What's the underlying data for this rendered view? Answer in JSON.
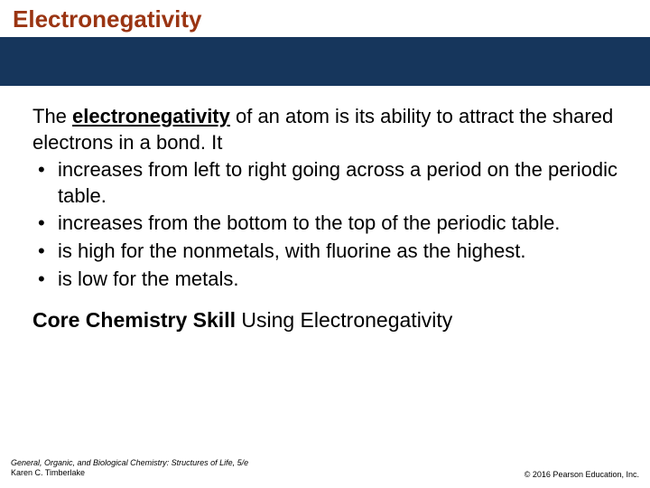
{
  "title": "Electronegativity",
  "colors": {
    "title_color": "#9a3412",
    "band_color": "#16365c",
    "text_color": "#000000",
    "background": "#ffffff"
  },
  "intro": {
    "pre": "The ",
    "keyword": "electronegativity",
    "post": " of an atom is its ability to attract the shared electrons in a bond. It"
  },
  "bullets": [
    "increases from left to right going across a period on the periodic table.",
    "increases from the bottom to the top of the periodic table.",
    "is high for the nonmetals, with fluorine as the highest.",
    "is low for the metals."
  ],
  "skill": {
    "label": "Core Chemistry Skill",
    "text": "  Using Electronegativity"
  },
  "footer": {
    "book": "General, Organic, and Biological Chemistry: Structures of Life, 5/e",
    "author": "Karen C. Timberlake",
    "copyright": "© 2016 Pearson Education, Inc."
  },
  "typography": {
    "title_fontsize": 26,
    "body_fontsize": 22,
    "skill_fontsize": 23,
    "footer_fontsize": 9
  }
}
